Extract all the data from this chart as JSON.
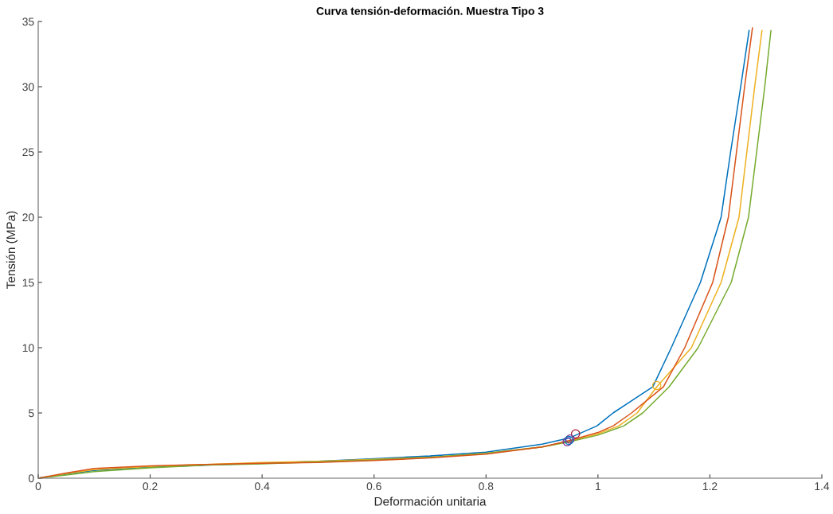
{
  "chart_data": {
    "type": "line",
    "title": "Curva tensión-deformación. Muestra Tipo 3",
    "xlabel": "Deformación unitaria",
    "ylabel": "Tensión (MPa)",
    "xlim": [
      0,
      1.4
    ],
    "ylim": [
      0,
      35
    ],
    "xticks": [
      0,
      0.2,
      0.4,
      0.6,
      0.8,
      1,
      1.2,
      1.4
    ],
    "yticks": [
      0,
      5,
      10,
      15,
      20,
      25,
      30,
      35
    ],
    "grid": false,
    "legend": false,
    "marker": "none",
    "line_style": "solid",
    "series": [
      {
        "color": "#0072bd",
        "x": [
          0,
          0.05,
          0.1,
          0.2,
          0.3,
          0.4,
          0.5,
          0.6,
          0.7,
          0.8,
          0.9,
          0.95,
          0.998,
          1.027,
          1.098,
          1.131,
          1.183,
          1.22,
          1.237,
          1.255,
          1.27
        ],
        "values": [
          0,
          0.3,
          0.6,
          0.85,
          1.0,
          1.15,
          1.3,
          1.5,
          1.7,
          2.0,
          2.6,
          3.1,
          4.0,
          5,
          7,
          10,
          15,
          20,
          25,
          30,
          34.3
        ]
      },
      {
        "color": "#edb120",
        "x": [
          0,
          0.05,
          0.1,
          0.2,
          0.3,
          0.4,
          0.5,
          0.6,
          0.7,
          0.8,
          0.9,
          0.95,
          1.0,
          1.037,
          1.07,
          1.105,
          1.167,
          1.22,
          1.252,
          1.28,
          1.293
        ],
        "values": [
          0,
          0.35,
          0.65,
          0.9,
          1.05,
          1.2,
          1.3,
          1.45,
          1.6,
          1.9,
          2.4,
          2.8,
          3.4,
          4,
          5,
          7,
          10,
          15,
          20,
          30,
          34.3
        ]
      },
      {
        "color": "#77ac30",
        "x": [
          0,
          0.05,
          0.1,
          0.2,
          0.3,
          0.4,
          0.5,
          0.6,
          0.7,
          0.8,
          0.9,
          0.95,
          1.0,
          1.046,
          1.08,
          1.127,
          1.179,
          1.238,
          1.269,
          1.298,
          1.309
        ],
        "values": [
          0,
          0.25,
          0.5,
          0.8,
          1.0,
          1.1,
          1.25,
          1.4,
          1.6,
          1.9,
          2.4,
          2.8,
          3.3,
          4,
          5,
          7,
          10,
          15,
          20,
          30,
          34.3
        ]
      },
      {
        "color": "#d95319",
        "x": [
          0,
          0.05,
          0.1,
          0.2,
          0.3,
          0.4,
          0.5,
          0.6,
          0.7,
          0.8,
          0.9,
          0.95,
          1.0,
          1.027,
          1.06,
          1.117,
          1.155,
          1.205,
          1.233,
          1.262,
          1.276
        ],
        "values": [
          0,
          0.4,
          0.75,
          0.95,
          1.05,
          1.15,
          1.2,
          1.35,
          1.55,
          1.85,
          2.4,
          2.9,
          3.5,
          4,
          5,
          7,
          10,
          15,
          20,
          30,
          34.5
        ]
      },
      {
        "type": "scatter",
        "marker": "circle",
        "color": "#a2142f",
        "x": [
          0.96
        ],
        "values": [
          3.4
        ]
      },
      {
        "type": "scatter",
        "marker": "circle",
        "color": "#7e2f8e",
        "x": [
          0.95,
          0.945
        ],
        "values": [
          3.0,
          2.8
        ]
      },
      {
        "type": "scatter",
        "marker": "circle",
        "color": "#0072bd",
        "x": [
          0.948
        ],
        "values": [
          2.9
        ]
      },
      {
        "type": "scatter",
        "marker": "circle",
        "color": "#edb120",
        "x": [
          1.105
        ],
        "values": [
          7.1
        ]
      }
    ]
  }
}
